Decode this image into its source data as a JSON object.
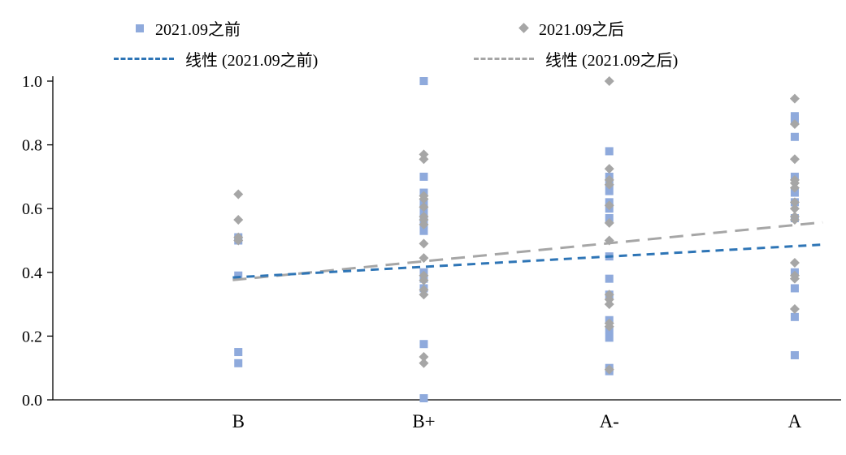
{
  "legend": {
    "series1": "2021.09之前",
    "series2": "2021.09之后",
    "trend1": "线性 (2021.09之前)",
    "trend2": "线性 (2021.09之后)"
  },
  "chart_data": {
    "type": "scatter",
    "title": "",
    "xlabel": "",
    "ylabel": "",
    "x_categories": [
      "B",
      "B+",
      "A-",
      "A"
    ],
    "x_positions": [
      1,
      2,
      3,
      4
    ],
    "x_range": [
      0,
      4.25
    ],
    "ylim": [
      0,
      1.0
    ],
    "y_ticks": [
      0.0,
      0.2,
      0.4,
      0.6,
      0.8,
      1.0
    ],
    "grid": false,
    "legend_position": "top",
    "colors": {
      "series1": "#8faadc",
      "series2": "#a6a6a6",
      "trend1": "#2e75b6",
      "trend2": "#a6a6a6",
      "axis": "#000000"
    },
    "series": [
      {
        "name": "2021.09之前",
        "marker": "square",
        "color": "#8faadc",
        "points": [
          [
            1,
            0.51
          ],
          [
            1,
            0.5
          ],
          [
            1,
            0.39
          ],
          [
            1,
            0.15
          ],
          [
            1,
            0.115
          ],
          [
            2,
            1.0
          ],
          [
            2,
            0.7
          ],
          [
            2,
            0.65
          ],
          [
            2,
            0.62
          ],
          [
            2,
            0.6
          ],
          [
            2,
            0.575
          ],
          [
            2,
            0.55
          ],
          [
            2,
            0.53
          ],
          [
            2,
            0.4
          ],
          [
            2,
            0.38
          ],
          [
            2,
            0.35
          ],
          [
            2,
            0.175
          ],
          [
            2,
            0.005
          ],
          [
            3,
            0.78
          ],
          [
            3,
            0.7
          ],
          [
            3,
            0.68
          ],
          [
            3,
            0.655
          ],
          [
            3,
            0.62
          ],
          [
            3,
            0.6
          ],
          [
            3,
            0.57
          ],
          [
            3,
            0.45
          ],
          [
            3,
            0.38
          ],
          [
            3,
            0.33
          ],
          [
            3,
            0.25
          ],
          [
            3,
            0.22
          ],
          [
            3,
            0.195
          ],
          [
            3,
            0.1
          ],
          [
            3,
            0.09
          ],
          [
            4,
            0.89
          ],
          [
            4,
            0.88
          ],
          [
            4,
            0.825
          ],
          [
            4,
            0.7
          ],
          [
            4,
            0.65
          ],
          [
            4,
            0.62
          ],
          [
            4,
            0.57
          ],
          [
            4,
            0.4
          ],
          [
            4,
            0.35
          ],
          [
            4,
            0.26
          ],
          [
            4,
            0.14
          ]
        ]
      },
      {
        "name": "2021.09之后",
        "marker": "diamond",
        "color": "#a6a6a6",
        "points": [
          [
            1,
            0.645
          ],
          [
            1,
            0.565
          ],
          [
            1,
            0.51
          ],
          [
            1,
            0.5
          ],
          [
            2,
            0.77
          ],
          [
            2,
            0.755
          ],
          [
            2,
            0.64
          ],
          [
            2,
            0.63
          ],
          [
            2,
            0.605
          ],
          [
            2,
            0.575
          ],
          [
            2,
            0.565
          ],
          [
            2,
            0.55
          ],
          [
            2,
            0.49
          ],
          [
            2,
            0.445
          ],
          [
            2,
            0.39
          ],
          [
            2,
            0.375
          ],
          [
            2,
            0.345
          ],
          [
            2,
            0.33
          ],
          [
            2,
            0.135
          ],
          [
            2,
            0.115
          ],
          [
            3,
            1.0
          ],
          [
            3,
            0.725
          ],
          [
            3,
            0.69
          ],
          [
            3,
            0.675
          ],
          [
            3,
            0.61
          ],
          [
            3,
            0.555
          ],
          [
            3,
            0.5
          ],
          [
            3,
            0.33
          ],
          [
            3,
            0.315
          ],
          [
            3,
            0.3
          ],
          [
            3,
            0.24
          ],
          [
            3,
            0.23
          ],
          [
            3,
            0.095
          ],
          [
            4,
            0.945
          ],
          [
            4,
            0.865
          ],
          [
            4,
            0.755
          ],
          [
            4,
            0.69
          ],
          [
            4,
            0.68
          ],
          [
            4,
            0.665
          ],
          [
            4,
            0.62
          ],
          [
            4,
            0.6
          ],
          [
            4,
            0.575
          ],
          [
            4,
            0.565
          ],
          [
            4,
            0.43
          ],
          [
            4,
            0.39
          ],
          [
            4,
            0.38
          ],
          [
            4,
            0.285
          ]
        ]
      }
    ],
    "trendlines": [
      {
        "name": "线性 (2021.09之后)",
        "color": "#a6a6a6",
        "dash": "17 10",
        "x1": 0.97,
        "y1": 0.376,
        "x2": 4.15,
        "y2": 0.557
      },
      {
        "name": "线性 (2021.09之前)",
        "color": "#2e75b6",
        "dash": "10 7",
        "x1": 0.97,
        "y1": 0.384,
        "x2": 4.15,
        "y2": 0.487
      }
    ]
  }
}
